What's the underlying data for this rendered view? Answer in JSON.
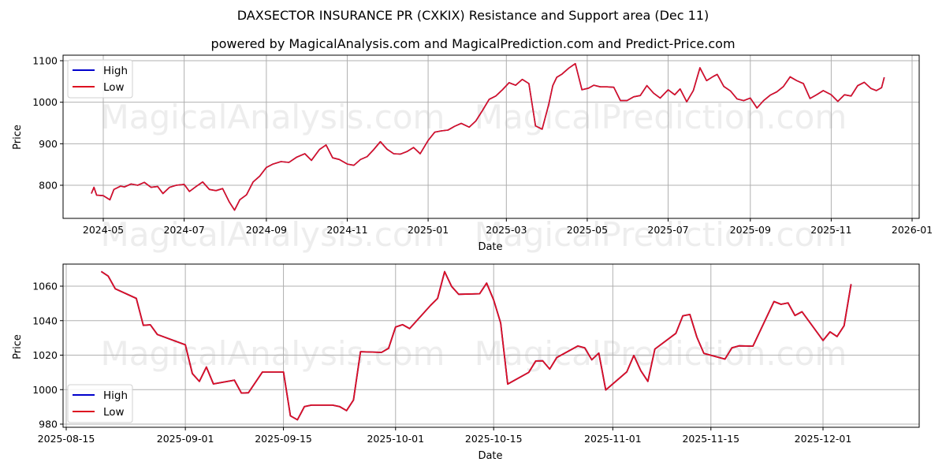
{
  "header": {
    "title": "DAXSECTOR INSURANCE PR (CXKIX) Resistance and Support area (Dec 11)",
    "subtitle": "powered by MagicalAnalysis.com and MagicalPrediction.com and Predict-Price.com"
  },
  "watermarks": [
    "MagicalAnalysis.com",
    "MagicalPrediction.com"
  ],
  "colors": {
    "high": "#0000cc",
    "low": "#dd1020",
    "grid": "#b0b0b0"
  },
  "chart_data": [
    {
      "type": "line",
      "title": "",
      "xlabel": "Date",
      "ylabel": "Price",
      "ylim": [
        720,
        1112
      ],
      "yticks": [
        800,
        900,
        1000,
        1100
      ],
      "xticks": [
        "2024-05",
        "2024-07",
        "2024-09",
        "2024-11",
        "2025-01",
        "2025-03",
        "2025-05",
        "2025-07",
        "2025-09",
        "2025-11",
        "2026-01"
      ],
      "legend": {
        "position": "upper left",
        "entries": [
          "High",
          "Low"
        ]
      },
      "grid": true,
      "x": [
        "2024-04-22",
        "2024-04-24",
        "2024-04-26",
        "2024-05-01",
        "2024-05-06",
        "2024-05-09",
        "2024-05-14",
        "2024-05-17",
        "2024-05-22",
        "2024-05-27",
        "2024-06-01",
        "2024-06-06",
        "2024-06-11",
        "2024-06-15",
        "2024-06-20",
        "2024-06-25",
        "2024-07-01",
        "2024-07-05",
        "2024-07-10",
        "2024-07-15",
        "2024-07-20",
        "2024-07-25",
        "2024-07-30",
        "2024-08-04",
        "2024-08-08",
        "2024-08-12",
        "2024-08-17",
        "2024-08-22",
        "2024-08-27",
        "2024-09-01",
        "2024-09-06",
        "2024-09-12",
        "2024-09-18",
        "2024-09-24",
        "2024-09-30",
        "2024-10-05",
        "2024-10-11",
        "2024-10-16",
        "2024-10-21",
        "2024-10-26",
        "2024-11-01",
        "2024-11-06",
        "2024-11-11",
        "2024-11-16",
        "2024-11-21",
        "2024-11-26",
        "2024-12-01",
        "2024-12-06",
        "2024-12-11",
        "2024-12-16",
        "2024-12-21",
        "2024-12-26",
        "2025-01-01",
        "2025-01-06",
        "2025-01-11",
        "2025-01-16",
        "2025-01-21",
        "2025-01-26",
        "2025-02-01",
        "2025-02-06",
        "2025-02-11",
        "2025-02-16",
        "2025-02-21",
        "2025-02-26",
        "2025-03-03",
        "2025-03-08",
        "2025-03-13",
        "2025-03-18",
        "2025-03-23",
        "2025-03-28",
        "2025-04-02",
        "2025-04-05",
        "2025-04-08",
        "2025-04-12",
        "2025-04-17",
        "2025-04-22",
        "2025-04-27",
        "2025-05-02",
        "2025-05-06",
        "2025-05-11",
        "2025-05-16",
        "2025-05-21",
        "2025-05-26",
        "2025-05-31",
        "2025-06-05",
        "2025-06-10",
        "2025-06-15",
        "2025-06-20",
        "2025-06-25",
        "2025-07-01",
        "2025-07-06",
        "2025-07-10",
        "2025-07-15",
        "2025-07-20",
        "2025-07-25",
        "2025-07-30",
        "2025-08-04",
        "2025-08-07",
        "2025-08-12",
        "2025-08-17",
        "2025-08-22",
        "2025-08-27",
        "2025-09-01",
        "2025-09-06",
        "2025-09-11",
        "2025-09-16",
        "2025-09-21",
        "2025-09-26",
        "2025-10-01",
        "2025-10-06",
        "2025-10-11",
        "2025-10-16",
        "2025-10-21",
        "2025-10-26",
        "2025-11-01",
        "2025-11-06",
        "2025-11-11",
        "2025-11-16",
        "2025-11-21",
        "2025-11-26",
        "2025-12-01",
        "2025-12-05",
        "2025-12-09",
        "2025-12-11"
      ],
      "series": [
        {
          "name": "High",
          "values": [
            780,
            795,
            776,
            775,
            765,
            790,
            798,
            796,
            803,
            800,
            807,
            795,
            797,
            780,
            795,
            800,
            802,
            785,
            797,
            808,
            790,
            787,
            792,
            760,
            740,
            765,
            777,
            808,
            822,
            843,
            851,
            857,
            855,
            868,
            876,
            860,
            886,
            897,
            866,
            862,
            851,
            848,
            862,
            869,
            886,
            905,
            887,
            876,
            875,
            881,
            891,
            876,
            908,
            928,
            931,
            933,
            942,
            949,
            940,
            955,
            980,
            1007,
            1015,
            1030,
            1047,
            1041,
            1055,
            1045,
            943,
            935,
            995,
            1040,
            1060,
            1068,
            1082,
            1093,
            1030,
            1034,
            1041,
            1037,
            1037,
            1036,
            1004,
            1004,
            1013,
            1016,
            1040,
            1022,
            1010,
            1030,
            1018,
            1032,
            1001,
            1028,
            1083,
            1052,
            1062,
            1067,
            1038,
            1027,
            1008,
            1004,
            1010,
            986,
            1004,
            1017,
            1025,
            1038,
            1061,
            1052,
            1045,
            1009,
            1018,
            1028,
            1018,
            1002,
            1018,
            1015,
            1040,
            1048,
            1033,
            1028,
            1035,
            1060
          ]
        },
        {
          "name": "Low",
          "values": [
            780,
            795,
            776,
            775,
            765,
            790,
            798,
            796,
            803,
            800,
            807,
            795,
            797,
            780,
            795,
            800,
            802,
            785,
            797,
            808,
            790,
            787,
            792,
            760,
            740,
            765,
            777,
            808,
            822,
            843,
            851,
            857,
            855,
            868,
            876,
            860,
            886,
            897,
            866,
            862,
            851,
            848,
            862,
            869,
            886,
            905,
            887,
            876,
            875,
            881,
            891,
            876,
            908,
            928,
            931,
            933,
            942,
            949,
            940,
            955,
            980,
            1007,
            1015,
            1030,
            1047,
            1041,
            1055,
            1045,
            943,
            935,
            995,
            1040,
            1060,
            1068,
            1082,
            1093,
            1030,
            1034,
            1041,
            1037,
            1037,
            1036,
            1004,
            1004,
            1013,
            1016,
            1040,
            1022,
            1010,
            1030,
            1018,
            1032,
            1001,
            1028,
            1083,
            1052,
            1062,
            1067,
            1038,
            1027,
            1008,
            1004,
            1010,
            986,
            1004,
            1017,
            1025,
            1038,
            1061,
            1052,
            1045,
            1009,
            1018,
            1028,
            1018,
            1002,
            1018,
            1015,
            1040,
            1048,
            1033,
            1028,
            1035,
            1060
          ]
        }
      ]
    },
    {
      "type": "line",
      "title": "",
      "xlabel": "Date",
      "ylabel": "Price",
      "ylim": [
        978,
        1072
      ],
      "yticks": [
        980,
        1000,
        1020,
        1040,
        1060
      ],
      "xticks": [
        "2025-08-15",
        "2025-09-01",
        "2025-09-15",
        "2025-10-01",
        "2025-10-15",
        "2025-11-01",
        "2025-11-15",
        "2025-12-01"
      ],
      "legend": {
        "position": "lower left",
        "entries": [
          "High",
          "Low"
        ]
      },
      "grid": true,
      "x": [
        "2025-08-20",
        "2025-08-21",
        "2025-08-22",
        "2025-08-25",
        "2025-08-26",
        "2025-08-27",
        "2025-08-28",
        "2025-09-01",
        "2025-09-02",
        "2025-09-03",
        "2025-09-04",
        "2025-09-05",
        "2025-09-08",
        "2025-09-09",
        "2025-09-10",
        "2025-09-12",
        "2025-09-15",
        "2025-09-16",
        "2025-09-17",
        "2025-09-18",
        "2025-09-19",
        "2025-09-22",
        "2025-09-23",
        "2025-09-24",
        "2025-09-25",
        "2025-09-26",
        "2025-09-29",
        "2025-09-30",
        "2025-10-01",
        "2025-10-02",
        "2025-10-03",
        "2025-10-06",
        "2025-10-07",
        "2025-10-08",
        "2025-10-09",
        "2025-10-10",
        "2025-10-13",
        "2025-10-14",
        "2025-10-15",
        "2025-10-16",
        "2025-10-17",
        "2025-10-20",
        "2025-10-21",
        "2025-10-22",
        "2025-10-23",
        "2025-10-24",
        "2025-10-27",
        "2025-10-28",
        "2025-10-29",
        "2025-10-30",
        "2025-10-31",
        "2025-11-03",
        "2025-11-04",
        "2025-11-05",
        "2025-11-06",
        "2025-11-07",
        "2025-11-10",
        "2025-11-11",
        "2025-11-12",
        "2025-11-13",
        "2025-11-14",
        "2025-11-17",
        "2025-11-18",
        "2025-11-19",
        "2025-11-20",
        "2025-11-21",
        "2025-11-24",
        "2025-11-25",
        "2025-11-26",
        "2025-11-27",
        "2025-11-28",
        "2025-12-01",
        "2025-12-02",
        "2025-12-03",
        "2025-12-04",
        "2025-12-05",
        "2025-12-08",
        "2025-12-09"
      ],
      "series": [
        {
          "name": "High",
          "values": [
            1068.5,
            1065.8,
            1058.5,
            1052.9,
            1037.3,
            1037.6,
            1032.0,
            1026.0,
            1009.3,
            1004.8,
            1013.1,
            1003.3,
            1005.5,
            998.0,
            998.2,
            1010.2,
            1010.2,
            984.8,
            982.5,
            990.2,
            991.0,
            991.0,
            990.2,
            987.8,
            994.0,
            1022.0,
            1021.6,
            1024.0,
            1036.3,
            1037.7,
            1035.4,
            1048.9,
            1052.9,
            1068.4,
            1059.8,
            1055.3,
            1055.6,
            1061.8,
            1052.0,
            1038.6,
            1003.2,
            1010.0,
            1016.6,
            1016.7,
            1011.9,
            1018.6,
            1025.3,
            1024.2,
            1017.3,
            1021.2,
            999.8,
            1010.3,
            1019.8,
            1011.0,
            1004.8,
            1023.5,
            1032.6,
            1042.8,
            1043.6,
            1030.4,
            1021.0,
            1017.7,
            1024.2,
            1025.4,
            1025.3,
            1025.2,
            1051.1,
            1049.5,
            1050.3,
            1043.0,
            1045.2,
            1028.5,
            1033.5,
            1030.8,
            1037.0,
            1061.2
          ]
        },
        {
          "name": "Low",
          "values": [
            1068.5,
            1065.8,
            1058.5,
            1052.9,
            1037.3,
            1037.6,
            1032.0,
            1026.0,
            1009.3,
            1004.8,
            1013.1,
            1003.3,
            1005.5,
            998.0,
            998.2,
            1010.2,
            1010.2,
            984.8,
            982.5,
            990.2,
            991.0,
            991.0,
            990.2,
            987.8,
            994.0,
            1022.0,
            1021.6,
            1024.0,
            1036.3,
            1037.7,
            1035.4,
            1048.9,
            1052.9,
            1068.4,
            1059.8,
            1055.3,
            1055.6,
            1061.8,
            1052.0,
            1038.6,
            1003.2,
            1010.0,
            1016.6,
            1016.7,
            1011.9,
            1018.6,
            1025.3,
            1024.2,
            1017.3,
            1021.2,
            999.8,
            1010.3,
            1019.8,
            1011.0,
            1004.8,
            1023.5,
            1032.6,
            1042.8,
            1043.6,
            1030.4,
            1021.0,
            1017.7,
            1024.2,
            1025.4,
            1025.3,
            1025.2,
            1051.1,
            1049.5,
            1050.3,
            1043.0,
            1045.2,
            1028.5,
            1033.5,
            1030.8,
            1037.0,
            1061.2
          ]
        }
      ]
    }
  ]
}
